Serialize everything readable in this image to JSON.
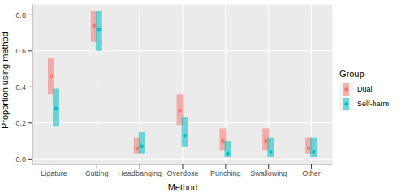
{
  "chart_data": {
    "type": "dot_errorbar",
    "x_label": "Method",
    "y_label": "Proportion using method",
    "legend_title": "Group",
    "legend": "right",
    "grid": true,
    "categories": [
      "Ligature",
      "Cutting",
      "Headbanging",
      "Overdose",
      "Punching",
      "Swallowing",
      "Other"
    ],
    "series": [
      {
        "name": "Dual",
        "color": "#F8766D",
        "values": [
          0.46,
          0.74,
          0.06,
          0.27,
          0.1,
          0.1,
          0.06
        ],
        "lower": [
          0.36,
          0.65,
          0.03,
          0.19,
          0.05,
          0.05,
          0.03
        ],
        "upper": [
          0.56,
          0.82,
          0.12,
          0.36,
          0.17,
          0.17,
          0.12
        ]
      },
      {
        "name": "Self-harm",
        "color": "#00BFC4",
        "values": [
          0.28,
          0.72,
          0.07,
          0.13,
          0.03,
          0.04,
          0.04
        ],
        "lower": [
          0.18,
          0.6,
          0.03,
          0.07,
          0.01,
          0.01,
          0.01
        ],
        "upper": [
          0.39,
          0.82,
          0.15,
          0.23,
          0.1,
          0.12,
          0.12
        ]
      }
    ],
    "ylim": [
      -0.03,
      0.86
    ],
    "yticks": [
      {
        "value": 0,
        "label": "0.0"
      },
      0.2,
      0.4,
      0.6,
      0.8
    ]
  }
}
